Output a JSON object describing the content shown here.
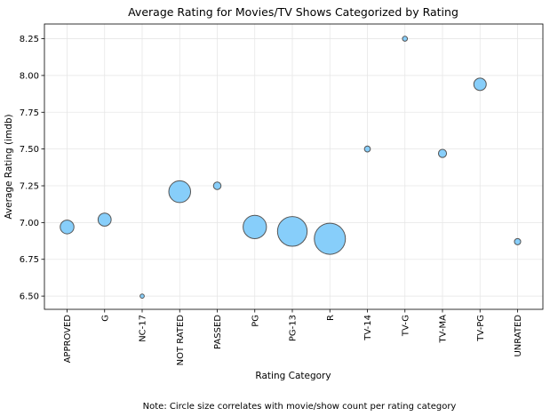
{
  "chart_data": {
    "type": "scatter",
    "title": "Average Rating for Movies/TV Shows Categorized by Rating",
    "xlabel": "Rating Category",
    "ylabel": "Average Rating (imdb)",
    "note": "Note: Circle size correlates with movie/show count per rating category",
    "categories": [
      "APPROVED",
      "G",
      "NC-17",
      "NOT RATED",
      "PASSED",
      "PG",
      "PG-13",
      "R",
      "TV-14",
      "TV-G",
      "TV-MA",
      "TV-PG",
      "UNRATED"
    ],
    "values": [
      6.97,
      7.02,
      6.5,
      7.21,
      7.25,
      6.97,
      6.94,
      6.89,
      7.5,
      8.25,
      7.47,
      7.94,
      6.87
    ],
    "sizes": [
      215,
      195,
      20,
      540,
      65,
      620,
      1000,
      1100,
      40,
      28,
      75,
      175,
      45
    ],
    "ylim": [
      6.41,
      8.35
    ],
    "yticks": [
      "6.50",
      "6.75",
      "7.00",
      "7.25",
      "7.50",
      "7.75",
      "8.00",
      "8.25"
    ],
    "grid": true,
    "colors": {
      "marker_fill": "#87cefa",
      "marker_edge": "#555555"
    }
  }
}
